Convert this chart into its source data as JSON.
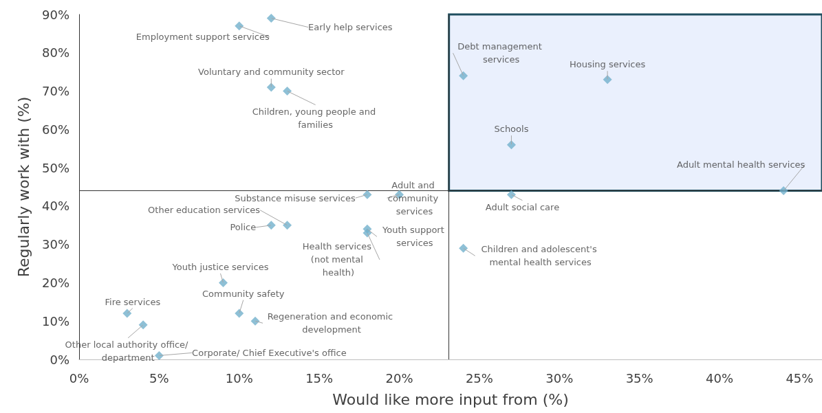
{
  "chart_data": {
    "type": "scatter",
    "xlabel": "Would like more input from (%)",
    "ylabel": "Regularly work with (%)",
    "x": [
      10,
      12,
      12,
      13,
      24,
      33,
      27,
      44,
      27,
      20,
      18,
      13,
      12,
      18,
      18,
      24,
      9,
      10,
      11,
      3,
      4,
      5
    ],
    "values": [
      87,
      89,
      71,
      70,
      74,
      73,
      56,
      44,
      43,
      43,
      43,
      35,
      35,
      34,
      33,
      29,
      20,
      12,
      10,
      12,
      9,
      1
    ],
    "color": "#72b0cc",
    "marker": "diamond",
    "grid": false,
    "xlim": [
      0,
      46.4
    ],
    "ylim": [
      0,
      90
    ],
    "xticks": [
      {
        "value": 0,
        "label": "0%"
      },
      {
        "value": 5,
        "label": "5%"
      },
      {
        "value": 10,
        "label": "10%"
      },
      {
        "value": 15,
        "label": "15%"
      },
      {
        "value": 20,
        "label": "20%"
      },
      {
        "value": 25,
        "label": "25%"
      },
      {
        "value": 30,
        "label": "30%"
      },
      {
        "value": 35,
        "label": "35%"
      },
      {
        "value": 40,
        "label": "40%"
      },
      {
        "value": 45,
        "label": "45%"
      }
    ],
    "yticks": [
      {
        "value": 0,
        "label": "0%"
      },
      {
        "value": 10,
        "label": "10%"
      },
      {
        "value": 20,
        "label": "20%"
      },
      {
        "value": 30,
        "label": "30%"
      },
      {
        "value": 40,
        "label": "40%"
      },
      {
        "value": 50,
        "label": "50%"
      },
      {
        "value": 60,
        "label": "60%"
      },
      {
        "value": 70,
        "label": "70%"
      },
      {
        "value": 80,
        "label": "80%"
      },
      {
        "value": 90,
        "label": "90%"
      }
    ],
    "ref_lines": [
      {
        "axis": "x",
        "value": 23.1,
        "color": "#333333"
      },
      {
        "axis": "y",
        "value": 44,
        "color": "#333333"
      }
    ],
    "bands": [
      {
        "axis": "x",
        "from": 23.1,
        "to": 46.4,
        "color": "#eaf0fd"
      }
    ],
    "annotations": [
      {
        "text": "Employment support services",
        "x": 10,
        "y": 87
      },
      {
        "text": "Early help services",
        "x": 12,
        "y": 89
      },
      {
        "text": "Voluntary and community sector",
        "x": 12,
        "y": 71
      },
      {
        "text": "Children, young people and families",
        "x": 13,
        "y": 70
      },
      {
        "text": "Debt management services",
        "x": 24,
        "y": 74
      },
      {
        "text": "Housing services",
        "x": 33,
        "y": 73
      },
      {
        "text": "Schools",
        "x": 27,
        "y": 56
      },
      {
        "text": "Adult mental health services",
        "x": 44,
        "y": 44
      },
      {
        "text": "Adult social care",
        "x": 27,
        "y": 43
      },
      {
        "text": "Adult and community services",
        "x": 20,
        "y": 43
      },
      {
        "text": "Substance misuse services",
        "x": 18,
        "y": 43
      },
      {
        "text": "Other education services",
        "x": 13,
        "y": 35
      },
      {
        "text": "Police",
        "x": 12,
        "y": 35
      },
      {
        "text": "Youth support services",
        "x": 18,
        "y": 34
      },
      {
        "text": "Health services (not mental health)",
        "x": 18,
        "y": 33
      },
      {
        "text": "Children and adolescent's mental health services",
        "x": 24,
        "y": 29
      },
      {
        "text": "Youth justice services",
        "x": 9,
        "y": 20
      },
      {
        "text": "Community safety",
        "x": 10,
        "y": 12
      },
      {
        "text": "Regeneration and economic development",
        "x": 11,
        "y": 10
      },
      {
        "text": "Fire services",
        "x": 3,
        "y": 12
      },
      {
        "text": "Other local authority office/ department",
        "x": 4,
        "y": 9
      },
      {
        "text": "Corporate/ Chief Executive's office",
        "x": 5,
        "y": 1
      }
    ]
  }
}
